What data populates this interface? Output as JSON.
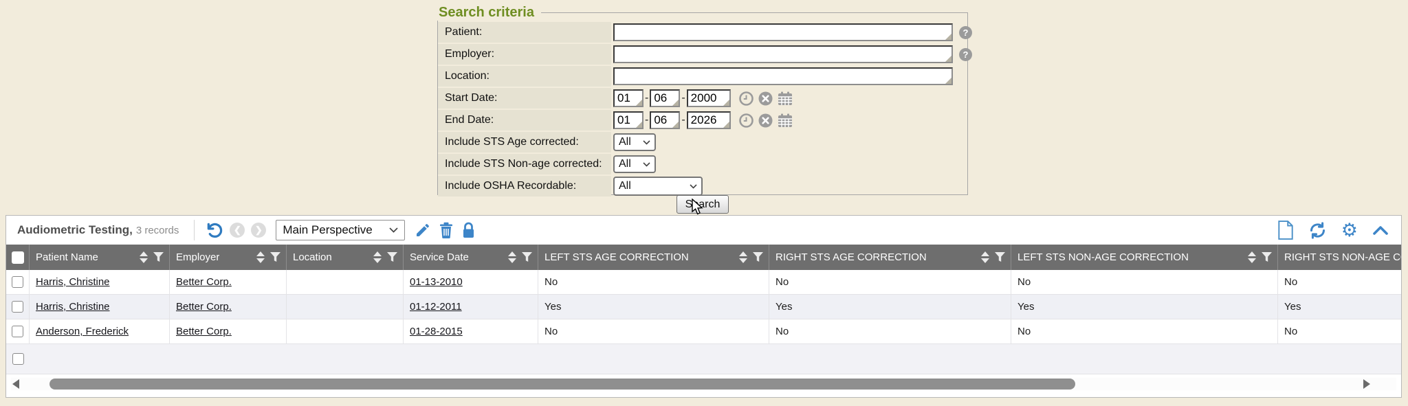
{
  "colors": {
    "page_bg": "#f2ecdc",
    "label_bg": "#e6e2d2",
    "title_green": "#6f8e22",
    "header_gray": "#6e6e6e",
    "accent_blue": "#3d85c8",
    "alt_row": "#eff0f5"
  },
  "search": {
    "title": "Search criteria",
    "patient_label": "Patient:",
    "employer_label": "Employer:",
    "location_label": "Location:",
    "start_date_label": "Start Date:",
    "end_date_label": "End Date:",
    "sts_age_label": "Include STS Age corrected:",
    "sts_nonage_label": "Include STS Non-age corrected:",
    "osha_label": "Include OSHA Recordable:",
    "patient_value": "",
    "employer_value": "",
    "location_value": "",
    "start_date": {
      "mm": "01",
      "dd": "06",
      "yyyy": "2000"
    },
    "end_date": {
      "mm": "01",
      "dd": "06",
      "yyyy": "2026"
    },
    "sts_age_value": "All",
    "sts_nonage_value": "All",
    "osha_value": "All",
    "search_button": "Search",
    "help_glyph": "?"
  },
  "grid": {
    "title": "Audiometric Testing,",
    "record_count": "3 records",
    "perspective": "Main Perspective",
    "columns": [
      "Patient Name",
      "Employer",
      "Location",
      "Service Date",
      "LEFT STS AGE CORRECTION",
      "RIGHT STS AGE CORRECTION",
      "LEFT STS NON-AGE CORRECTION",
      "RIGHT STS NON-AGE CORRECTION"
    ],
    "rows": [
      {
        "patient": "Harris, Christine",
        "employer": "Better Corp.",
        "location": "",
        "service_date": "01-13-2010",
        "left_sts_age": "No",
        "right_sts_age": "No",
        "left_sts_nonage": "No",
        "right_sts_nonage": "No"
      },
      {
        "patient": "Harris, Christine",
        "employer": "Better Corp.",
        "location": "",
        "service_date": "01-12-2011",
        "left_sts_age": "Yes",
        "right_sts_age": "Yes",
        "left_sts_nonage": "Yes",
        "right_sts_nonage": "Yes"
      },
      {
        "patient": "Anderson, Frederick",
        "employer": "Better Corp.",
        "location": "",
        "service_date": "01-28-2015",
        "left_sts_age": "No",
        "right_sts_age": "No",
        "left_sts_nonage": "No",
        "right_sts_nonage": "No"
      }
    ]
  }
}
